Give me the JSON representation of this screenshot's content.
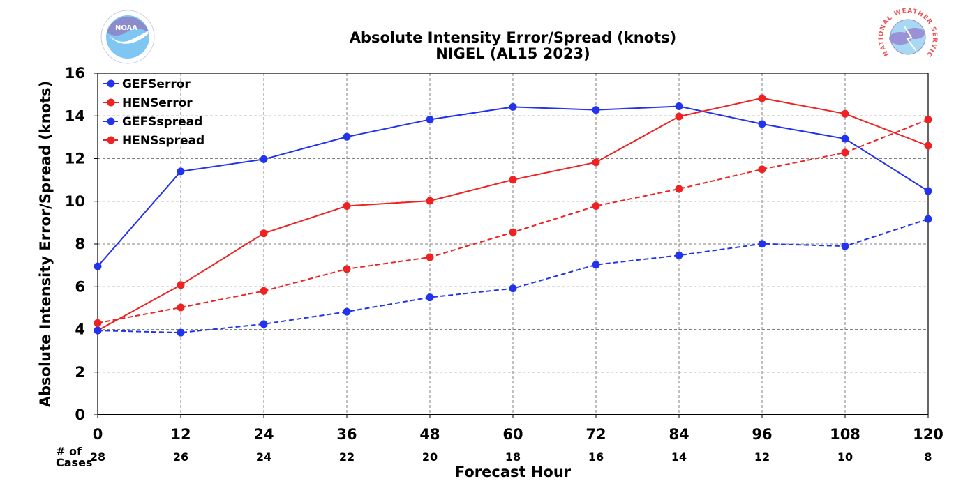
{
  "chart_data": {
    "type": "line",
    "title": "Absolute Intensity Error/Spread (knots)",
    "subtitle": "NIGEL (AL15 2023)",
    "xlabel": "Forecast Hour",
    "ylabel": "Absolute Intensity Error/Spread (knots)",
    "x": [
      0,
      12,
      24,
      36,
      48,
      60,
      72,
      84,
      96,
      108,
      120
    ],
    "xlim": [
      0,
      120
    ],
    "ylim": [
      0,
      16
    ],
    "yticks": [
      0,
      2,
      4,
      6,
      8,
      10,
      12,
      14,
      16
    ],
    "grid": true,
    "legend": "top-left",
    "cases_label": "# of\nCases",
    "cases": [
      28,
      26,
      24,
      22,
      20,
      18,
      16,
      14,
      12,
      10,
      8
    ],
    "series": [
      {
        "name": "GEFSerror",
        "color": "#2233ee",
        "dash": false,
        "values": [
          6.95,
          11.4,
          11.97,
          13.02,
          13.83,
          14.42,
          14.28,
          14.45,
          13.62,
          12.93,
          10.48
        ]
      },
      {
        "name": "HENSerror",
        "color": "#ee2222",
        "dash": false,
        "values": [
          3.95,
          6.08,
          8.5,
          9.78,
          10.02,
          11.01,
          11.83,
          13.97,
          14.83,
          14.1,
          12.6
        ]
      },
      {
        "name": "GEFSspread",
        "color": "#2233ee",
        "dash": true,
        "values": [
          3.95,
          3.85,
          4.25,
          4.83,
          5.5,
          5.92,
          7.03,
          7.47,
          8.01,
          7.9,
          9.17
        ]
      },
      {
        "name": "HENSspread",
        "color": "#ee2222",
        "dash": true,
        "values": [
          4.3,
          5.03,
          5.8,
          6.83,
          7.38,
          8.55,
          9.78,
          10.58,
          11.5,
          12.28,
          13.83
        ]
      }
    ]
  },
  "logos": {
    "left": {
      "name": "noaa-logo",
      "text": "NOAA"
    },
    "right": {
      "name": "nws-logo",
      "text": "NATIONAL WEATHER SERVICE"
    }
  }
}
